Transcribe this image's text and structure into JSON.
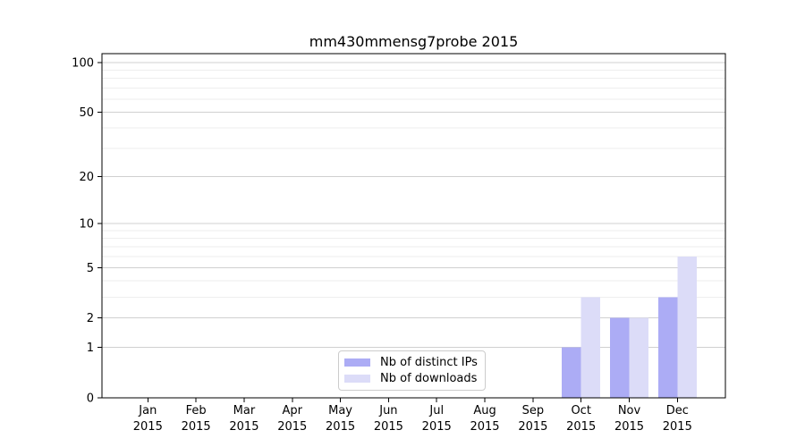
{
  "chart_data": {
    "type": "bar",
    "title": "mm430mmensg7probe 2015",
    "categories": [
      "Jan 2015",
      "Feb 2015",
      "Mar 2015",
      "Apr 2015",
      "May 2015",
      "Jun 2015",
      "Jul 2015",
      "Aug 2015",
      "Sep 2015",
      "Oct 2015",
      "Nov 2015",
      "Dec 2015"
    ],
    "series": [
      {
        "name": "Nb of distinct IPs",
        "color": "#acacf5",
        "values": [
          0,
          0,
          0,
          0,
          0,
          0,
          0,
          0,
          0,
          1,
          2,
          3
        ]
      },
      {
        "name": "Nb of downloads",
        "color": "#dcdcf8",
        "values": [
          0,
          0,
          0,
          0,
          0,
          0,
          0,
          0,
          0,
          3,
          2,
          6
        ]
      }
    ],
    "xlabel": "",
    "ylabel": "",
    "yscale": "log1p",
    "yticks": [
      0,
      1,
      2,
      5,
      10,
      20,
      50,
      100
    ],
    "yticks_minor": [
      3,
      4,
      6,
      7,
      8,
      9,
      30,
      40,
      60,
      70,
      80,
      90
    ],
    "ylim": [
      0,
      113
    ],
    "grid": "on",
    "legend_position": "lower center",
    "colors": {
      "grid_major": "#d0d0d0",
      "grid_minor": "#eeeeee",
      "axis": "#000000",
      "background": "#ffffff"
    }
  }
}
